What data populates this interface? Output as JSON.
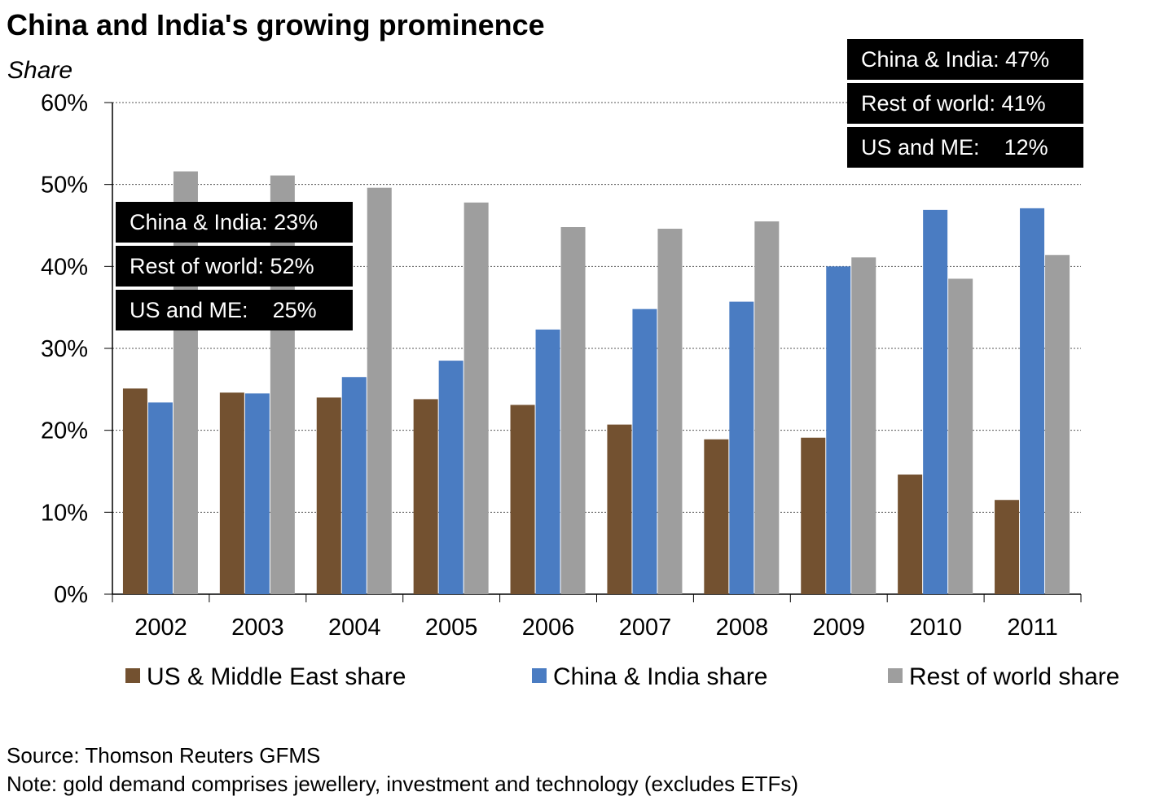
{
  "title": "China and India's growing prominence",
  "y_unit": "Share",
  "colors": {
    "us_me": "#735130",
    "china_india": "#4a7cc2",
    "rest": "#9e9e9e",
    "callout_bg": "#000000",
    "grid": "#555555"
  },
  "callouts_2002": {
    "china_india": "China & India: 23%",
    "rest": "Rest of world: 52%",
    "us_me": "US and ME:    25%"
  },
  "callouts_2011": {
    "china_india": "China & India: 47%",
    "rest": "Rest of world: 41%",
    "us_me": "US and ME:    12%"
  },
  "legend": {
    "us_me": "US & Middle East share",
    "china_india": "China & India share",
    "rest": "Rest of world share"
  },
  "source": "Source: Thomson Reuters GFMS",
  "note": "Note: gold demand comprises jewellery, investment and technology (excludes ETFs)",
  "chart_data": {
    "type": "bar",
    "categories": [
      "2002",
      "2003",
      "2004",
      "2005",
      "2006",
      "2007",
      "2008",
      "2009",
      "2010",
      "2011"
    ],
    "series": [
      {
        "name": "US & Middle East share",
        "color": "#735130",
        "values": [
          25.1,
          24.6,
          24.0,
          23.8,
          23.1,
          20.7,
          18.9,
          19.1,
          14.6,
          11.5
        ]
      },
      {
        "name": "China & India share",
        "color": "#4a7cc2",
        "values": [
          23.4,
          24.5,
          26.5,
          28.5,
          32.3,
          34.8,
          35.7,
          40.0,
          46.9,
          47.1
        ]
      },
      {
        "name": "Rest of world share",
        "color": "#9e9e9e",
        "values": [
          51.6,
          51.1,
          49.6,
          47.8,
          44.8,
          44.6,
          45.5,
          41.1,
          38.5,
          41.4
        ]
      }
    ],
    "ylim": [
      0,
      60
    ],
    "yticks": [
      "0%",
      "10%",
      "20%",
      "30%",
      "40%",
      "50%",
      "60%"
    ],
    "ytick_values": [
      0,
      10,
      20,
      30,
      40,
      50,
      60
    ],
    "ylabel": "Share",
    "grid": "horizontal dashed",
    "legend_position": "bottom"
  }
}
